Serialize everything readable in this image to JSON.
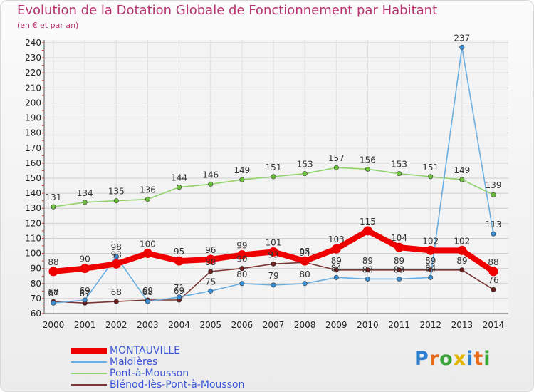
{
  "title": "Evolution de la Dotation Globale de Fonctionnement par Habitant",
  "subtitle": "(en € et par an)",
  "logo": {
    "text": "Proxiti",
    "colors": [
      "#2f7fd1",
      "#e66a1a",
      "#3aa33a",
      "#e2b400"
    ]
  },
  "chart_data": {
    "type": "line",
    "title": "Evolution de la Dotation Globale de Fonctionnement par Habitant",
    "subtitle": "(en € et par an)",
    "x": [
      "2000",
      "2001",
      "2002",
      "2003",
      "2004",
      "2005",
      "2006",
      "2007",
      "2008",
      "2009",
      "2010",
      "2011",
      "2012",
      "2013",
      "2014"
    ],
    "ylim": [
      60,
      240
    ],
    "yticks": [
      60,
      70,
      80,
      90,
      100,
      110,
      120,
      130,
      140,
      150,
      160,
      170,
      180,
      190,
      200,
      210,
      220,
      230,
      240
    ],
    "grid": true,
    "legend_position": "bottom",
    "series": [
      {
        "name": "Pont-à-Mousson",
        "color": "#8fd36a",
        "marker": "#6cc23a",
        "values": [
          131,
          134,
          135,
          136,
          144,
          146,
          149,
          151,
          153,
          157,
          156,
          153,
          151,
          149,
          139
        ],
        "labels": [
          "131",
          "134",
          "135",
          "136",
          "144",
          "146",
          "149",
          "151",
          "153",
          "157",
          "156",
          "153",
          "151",
          "149",
          "139"
        ]
      },
      {
        "name": "Blénod-lès-Pont-à-Mousson",
        "color": "#7a3535",
        "marker": "#6a1e1e",
        "values": [
          68,
          67,
          68,
          69,
          69,
          88,
          90,
          93,
          94,
          89,
          89,
          89,
          89,
          89,
          76
        ],
        "labels": [
          "68",
          "67",
          "68",
          "69",
          "69",
          "88",
          "90",
          "93",
          "94",
          "89",
          "89",
          "89",
          "89",
          "89",
          "76"
        ]
      },
      {
        "name": "Maidières",
        "color": "#6aaee0",
        "marker": "#3b8fd6",
        "values": [
          67,
          69,
          98,
          68,
          71,
          75,
          80,
          79,
          80,
          84,
          83,
          83,
          84,
          237,
          113
        ],
        "labels": [
          "67",
          "69",
          "98",
          "68",
          "71",
          "75",
          "80",
          "79",
          "80",
          "84",
          "83",
          "83",
          "84",
          "237",
          "113"
        ]
      },
      {
        "name": "MONTAUVILLE",
        "color": "#ee0000",
        "marker": "#ee0000",
        "values": [
          88,
          90,
          93,
          100,
          95,
          96,
          99,
          101,
          95,
          103,
          115,
          104,
          102,
          102,
          88
        ],
        "labels": [
          "88",
          "90",
          "93",
          "100",
          "95",
          "96",
          "99",
          "101",
          "95",
          "103",
          "115",
          "104",
          "102",
          "102",
          "88"
        ]
      }
    ],
    "legend": [
      {
        "name": "MONTAUVILLE",
        "color": "#ee0000",
        "width": 8
      },
      {
        "name": "Maidières",
        "color": "#6aaee0",
        "width": 2
      },
      {
        "name": "Pont-à-Mousson",
        "color": "#8fd36a",
        "width": 2
      },
      {
        "name": "Blénod-lès-Pont-à-Mousson",
        "color": "#7a3535",
        "width": 2
      }
    ]
  }
}
